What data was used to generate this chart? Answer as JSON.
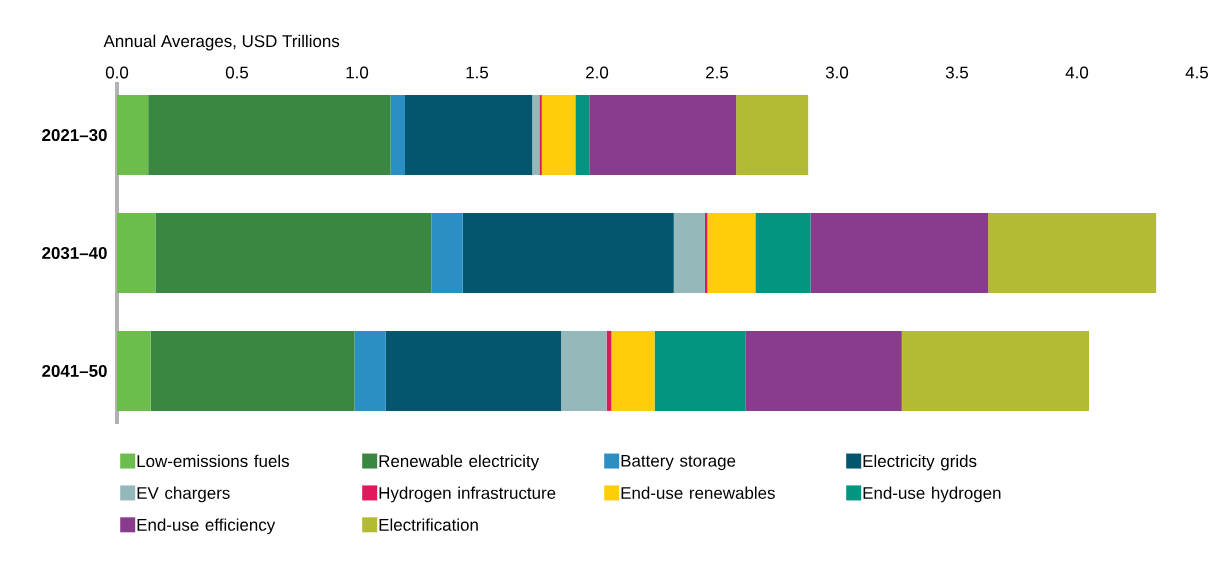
{
  "chart_data": {
    "type": "bar",
    "orientation": "horizontal",
    "stacked": true,
    "xlabel": "Annual Averages, USD Trillions",
    "categories": [
      "2021–30",
      "2031–40",
      "2041–50"
    ],
    "xlim": [
      0,
      4.5
    ],
    "xticks": [
      {
        "value": 0,
        "label": "0.0"
      },
      {
        "value": 0.5,
        "label": "0.5"
      },
      {
        "value": 1,
        "label": "1.0"
      },
      {
        "value": 1.5,
        "label": "1.5"
      },
      {
        "value": 2,
        "label": "2.0"
      },
      {
        "value": 2.5,
        "label": "2.5"
      },
      {
        "value": 3,
        "label": "3.0"
      },
      {
        "value": 3.5,
        "label": "3.5"
      },
      {
        "value": 4,
        "label": "4.0"
      },
      {
        "value": 4.5,
        "label": "4.5"
      }
    ],
    "legend": "bottom",
    "series": [
      {
        "name": "Low-emissions fuels",
        "color": "#6cbd4c",
        "values": [
          0.13,
          0.16,
          0.14
        ]
      },
      {
        "name": "Renewable electricity",
        "color": "#3a8742",
        "values": [
          1.01,
          1.15,
          0.85
        ]
      },
      {
        "name": "Battery storage",
        "color": "#2b8fc4",
        "values": [
          0.06,
          0.13,
          0.13
        ]
      },
      {
        "name": "Electricity grids",
        "color": "#04566f",
        "values": [
          0.53,
          0.88,
          0.73
        ]
      },
      {
        "name": "EV chargers",
        "color": "#95b8bb",
        "values": [
          0.03,
          0.13,
          0.19
        ]
      },
      {
        "name": "Hydrogen infrastructure",
        "color": "#e0195c",
        "values": [
          0.01,
          0.01,
          0.02
        ]
      },
      {
        "name": "End-use renewables",
        "color": "#ffcd0a",
        "values": [
          0.14,
          0.2,
          0.18
        ]
      },
      {
        "name": "End-use hydrogen",
        "color": "#03957f",
        "values": [
          0.06,
          0.23,
          0.38
        ]
      },
      {
        "name": "End-use efficiency",
        "color": "#893c8d",
        "values": [
          0.61,
          0.74,
          0.65
        ]
      },
      {
        "name": "Electrification",
        "color": "#b3ba34",
        "values": [
          0.3,
          0.7,
          0.78
        ]
      }
    ]
  }
}
